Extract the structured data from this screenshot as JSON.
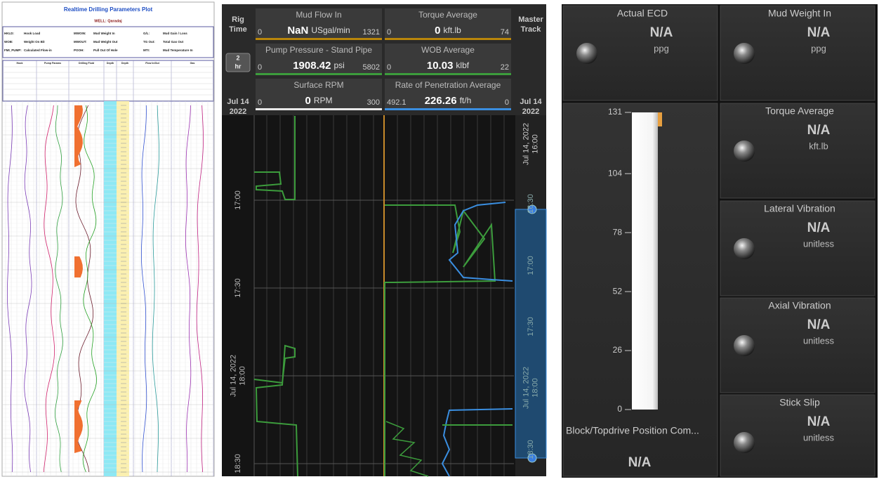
{
  "log": {
    "title": "Realtime Drilling Parameters Plot",
    "well": "WELL: Qaradaj",
    "legend": [
      [
        "HKLD:",
        "Hook Load"
      ],
      [
        "WOB:",
        "Weight On Bit"
      ],
      [
        "FMI_PUMP:",
        "Calculated Flow-in"
      ],
      [
        "MWOIN:",
        "Mud Weight In"
      ],
      [
        "MWOUT:",
        "Mud Weight Out"
      ],
      [
        "POOH:",
        "Pull Out Of Hole"
      ],
      [
        "G/L:",
        "Mud Gain / Loss"
      ],
      [
        "TG Out:",
        "Total Gas Out"
      ],
      [
        "MTI:",
        "Mud Temperature In"
      ]
    ],
    "columns": [
      "Hook",
      "Pump Params",
      "Drilling Fluid",
      "Depth",
      "Depth",
      "Flow In/Out",
      "Gas"
    ]
  },
  "rig": {
    "left_header": [
      "Rig",
      "Time"
    ],
    "range": [
      "2",
      "hr"
    ],
    "date_left": [
      "Jul 14",
      "2022"
    ],
    "right_header": [
      "Master",
      "Track"
    ],
    "date_right": [
      "Jul 14",
      "2022"
    ],
    "gauges": [
      {
        "name": "Mud Flow In",
        "value": "NaN",
        "unit": "USgal/min",
        "min": "0",
        "max": "1321",
        "color": "#b8860b"
      },
      {
        "name": "Torque Average",
        "value": "0",
        "unit": "kft.lb",
        "min": "0",
        "max": "74",
        "color": "#b8860b"
      },
      {
        "name": "Pump Pressure - Stand Pipe",
        "value": "1908.42",
        "unit": "psi",
        "min": "0",
        "max": "5802",
        "color": "#3c9c3c"
      },
      {
        "name": "WOB Average",
        "value": "10.03",
        "unit": "klbf",
        "min": "0",
        "max": "22",
        "color": "#3c9c3c"
      },
      {
        "name": "Surface RPM",
        "value": "0",
        "unit": "RPM",
        "min": "0",
        "max": "300",
        "color": "#e8e8e8"
      },
      {
        "name": "Rate of Penetration Average",
        "value": "226.26",
        "unit": "ft/h",
        "min": "492.1",
        "max": "0",
        "color": "#3a8ee0"
      }
    ],
    "time_labels": [
      [
        "17:00"
      ],
      [
        "17:30"
      ],
      [
        "Jul 14, 2022",
        "18:00"
      ],
      [
        "18:30"
      ]
    ],
    "track_labels": [
      [
        "Jul 14, 2022",
        "16:00"
      ],
      [
        "16:30"
      ],
      [
        "17:00"
      ],
      [
        "17:30"
      ],
      [
        "Jul 14, 2022",
        "18:00"
      ],
      [
        "18:30"
      ]
    ]
  },
  "dashboard": {
    "tiles": [
      {
        "name": "Actual ECD",
        "value": "N/A",
        "unit": "ppg"
      },
      {
        "name": "Mud Weight In",
        "value": "N/A",
        "unit": "ppg"
      },
      {
        "name": "Torque Average",
        "value": "N/A",
        "unit": "kft.lb"
      },
      {
        "name": "Lateral Vibration",
        "value": "N/A",
        "unit": "unitless"
      },
      {
        "name": "Axial Vibration",
        "value": "N/A",
        "unit": "unitless"
      },
      {
        "name": "Stick Slip",
        "value": "N/A",
        "unit": "unitless"
      }
    ],
    "block": {
      "name": "Block/Topdrive Position Com...",
      "value": "N/A",
      "ticks": [
        0,
        26,
        52,
        78,
        104,
        131
      ]
    }
  }
}
